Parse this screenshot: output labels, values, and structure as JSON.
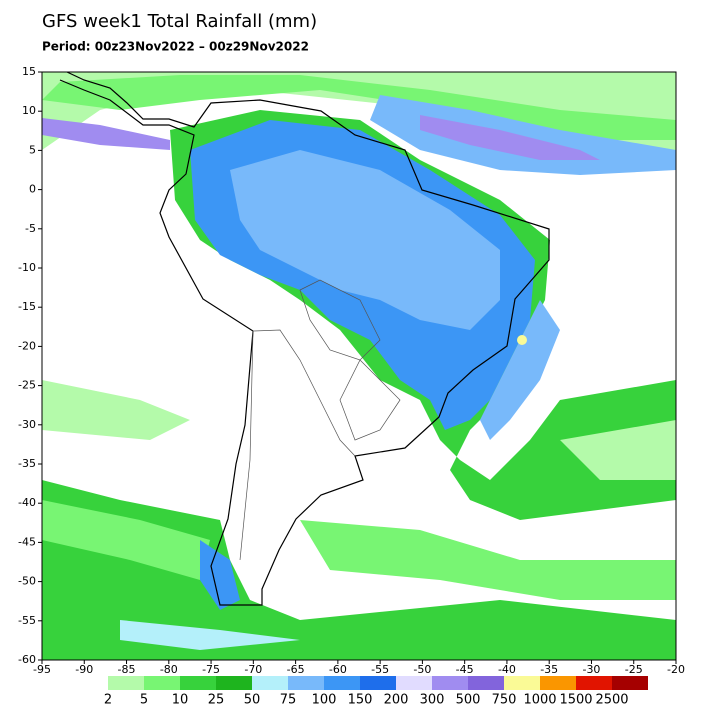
{
  "title": "GFS week1 Total Rainfall (mm)",
  "period": "Period: 00z23Nov2022 – 00z29Nov2022",
  "map": {
    "xlim": [
      -95,
      -20
    ],
    "ylim": [
      -60,
      15
    ],
    "xticks": [
      -95,
      -90,
      -85,
      -80,
      -75,
      -70,
      -65,
      -60,
      -55,
      -50,
      -45,
      -40,
      -35,
      -30,
      -25,
      -20
    ],
    "yticks": [
      15,
      10,
      5,
      0,
      -5,
      -10,
      -15,
      -20,
      -25,
      -30,
      -35,
      -40,
      -45,
      -50,
      -55,
      -60
    ]
  },
  "legend": {
    "levels": [
      2,
      5,
      10,
      25,
      50,
      75,
      100,
      150,
      200,
      300,
      500,
      750,
      1000,
      1500,
      2500
    ],
    "colors": [
      "#b4faaa",
      "#78f573",
      "#37d23c",
      "#1eb41e",
      "#b4f0fa",
      "#78b9fa",
      "#3c96f5",
      "#1e6eeb",
      "#e1dcff",
      "#a08cf0",
      "#8264dc",
      "#fafa96",
      "#fa9600",
      "#e11400",
      "#a50000"
    ]
  }
}
